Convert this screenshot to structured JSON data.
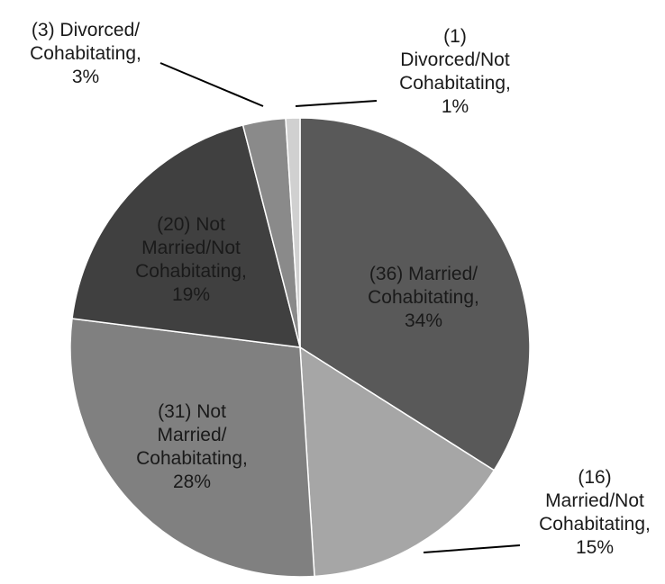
{
  "chart_data": {
    "type": "pie",
    "categories": [
      "(36) Married/\nCohabitating,",
      "(16)\nMarried/Not\nCohabitating,",
      "(31) Not\nMarried/\nCohabitating,",
      "(20) Not\nMarried/Not\nCohabitating,",
      "(3) Divorced/\nCohabitating,",
      "(1)\nDivorced/Not\nCohabitating,"
    ],
    "values": [
      34,
      15,
      28,
      19,
      3,
      1
    ],
    "value_labels": [
      "34%",
      "15%",
      "28%",
      "19%",
      "3%",
      "1%"
    ],
    "colors": [
      "#595959",
      "#a6a6a6",
      "#808080",
      "#404040",
      "#8a8a8a",
      "#d0d0d0"
    ]
  }
}
